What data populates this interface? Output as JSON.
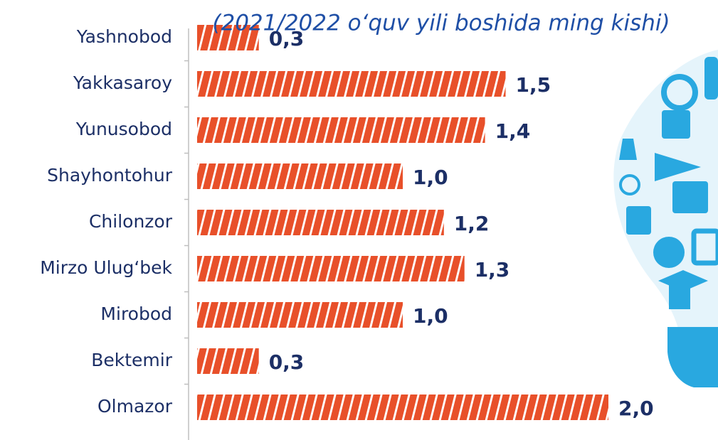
{
  "chart_data": {
    "type": "bar",
    "orientation": "horizontal",
    "subtitle": "(2021/2022 o‘quv yili boshida ming kishi)",
    "categories": [
      "Yashnobod",
      "Yakkasaroy",
      "Yunusobod",
      "Shayhontohur",
      "Chilonzor",
      "Mirzo Ulug‘bek",
      "Mirobod",
      "Bektemir",
      "Olmazor"
    ],
    "values": [
      0.3,
      1.5,
      1.4,
      1.0,
      1.2,
      1.3,
      1.0,
      0.3,
      2.0
    ],
    "value_labels": [
      "0,3",
      "1,5",
      "1,4",
      "1,0",
      "1,2",
      "1,3",
      "1,0",
      "0,3",
      "2,0"
    ],
    "color": "#e8502a"
  }
}
